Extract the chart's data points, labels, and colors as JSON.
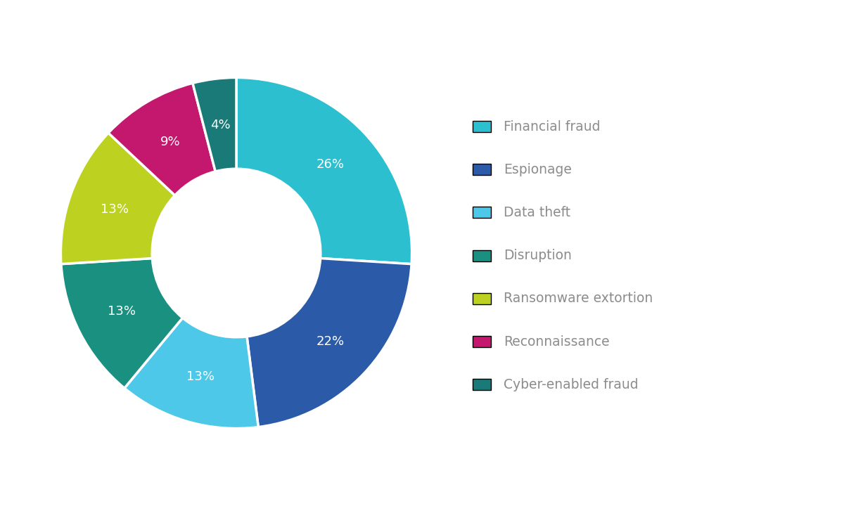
{
  "labels": [
    "Financial fraud",
    "Espionage",
    "Data theft",
    "Disruption",
    "Ransomware extortion",
    "Reconnaissance",
    "Cyber-enabled fraud"
  ],
  "values": [
    26,
    22,
    13,
    13,
    13,
    9,
    4
  ],
  "colors": [
    "#2bbfcf",
    "#2b5ba8",
    "#4dc8e8",
    "#1a9080",
    "#bdd120",
    "#c4186e",
    "#1a7a78"
  ],
  "text_color": "#8c8c8c",
  "background_color": "#ffffff",
  "label_fontsize": 13.5,
  "pct_fontsize": 13,
  "donut_width": 0.52
}
